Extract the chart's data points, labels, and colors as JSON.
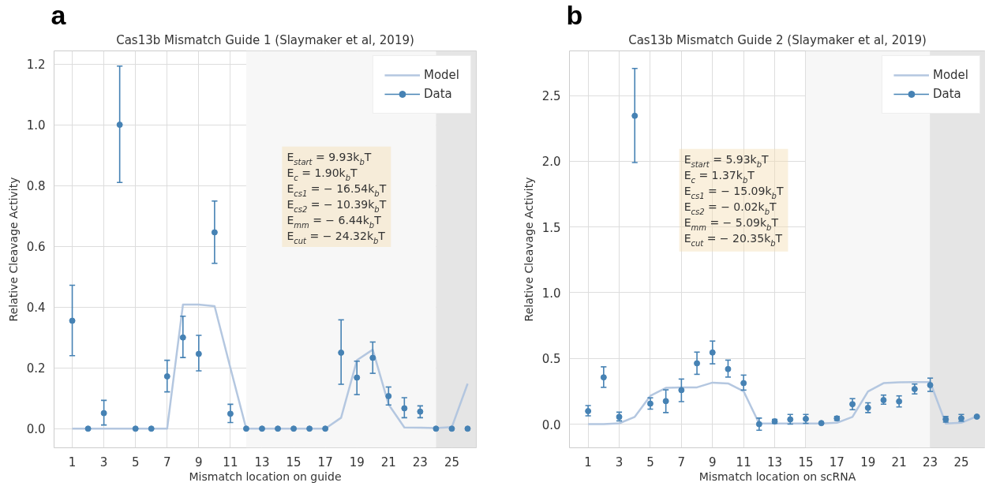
{
  "chart_data": [
    {
      "type": "line",
      "title": "Cas13b Mismatch Guide 1 (Slaymaker et al, 2019)",
      "xlabel": "Mismatch location on guide",
      "ylabel": "Relative Cleavage Activity",
      "annotations": [
        "a",
        "E$_{start}$ = 9.93k$_{b}$T",
        "E$_{c}$ = 1.90k$_{b}$T",
        "E$_{cs1}$ = − 16.54k$_{b}$T",
        "E$_{cs2}$ = − 10.39k$_{b}$T",
        "E$_{mm}$ = − 6.44k$_{b}$T",
        "E$_{cut}$ = − 24.32k$_{b}$T"
      ],
      "x": [
        1,
        2,
        3,
        4,
        5,
        6,
        7,
        8,
        9,
        10,
        11,
        12,
        13,
        14,
        15,
        16,
        17,
        18,
        19,
        20,
        21,
        22,
        23,
        24,
        25,
        26
      ],
      "series": [
        {
          "name": "Model",
          "color": "#b0c4de",
          "values": [
            0,
            0,
            0,
            0,
            0,
            0,
            0,
            0.408,
            0.408,
            0.403,
            0.2,
            0,
            0,
            0,
            0,
            0,
            0,
            0.036,
            0.225,
            0.26,
            0.08,
            0.004,
            0.003,
            0.002,
            0.005,
            0.148
          ]
        },
        {
          "name": "Data",
          "type": "scatter",
          "marker": "circle",
          "color": "#4682b4",
          "values": [
            0.355,
            0,
            0.051,
            1.0,
            0,
            0,
            0.172,
            0.3,
            0.246,
            0.646,
            0.049,
            0,
            0,
            0,
            0,
            0,
            0,
            0.25,
            0.168,
            0.233,
            0.107,
            0.067,
            0.056,
            0,
            0,
            0
          ],
          "errors": [
            [
              0.24,
              0.472
            ],
            null,
            [
              0.012,
              0.093
            ],
            [
              0.81,
              1.193
            ],
            null,
            null,
            [
              0.121,
              0.225
            ],
            [
              0.234,
              0.37
            ],
            [
              0.19,
              0.307
            ],
            [
              0.544,
              0.749
            ],
            [
              0.02,
              0.08
            ],
            null,
            null,
            null,
            null,
            null,
            null,
            [
              0.146,
              0.358
            ],
            [
              0.112,
              0.222
            ],
            [
              0.182,
              0.285
            ],
            [
              0.078,
              0.137
            ],
            [
              0.036,
              0.102
            ],
            [
              0.036,
              0.075
            ],
            null,
            null,
            null
          ]
        }
      ],
      "bands": [
        {
          "axis": "x",
          "from": 12,
          "to": 24,
          "color": "#f7f7f7"
        },
        {
          "axis": "x",
          "from": 24,
          "to": 26.55,
          "color": "#e5e5e5"
        }
      ],
      "xlim": [
        -0.15,
        26.55
      ],
      "xticks": [
        1,
        3,
        5,
        7,
        9,
        11,
        13,
        15,
        17,
        19,
        21,
        23,
        25
      ],
      "ylim": [
        -0.063,
        1.243
      ],
      "yticks": [
        {
          "value": 0,
          "label": "0.0"
        },
        0.2,
        0.4,
        0.6,
        0.8,
        {
          "value": 1,
          "label": "1.0"
        },
        1.2
      ],
      "grid": true,
      "legend": "top right"
    },
    {
      "type": "line",
      "title": "Cas13b Mismatch Guide 2 (Slaymaker et al, 2019)",
      "xlabel": "Mismatch location on scRNA",
      "ylabel": "Relative Cleavage Activity",
      "annotations": [
        "b",
        "E$_{start}$ = 5.93k$_{b}$T",
        "E$_{c}$ = 1.37k$_{b}$T",
        "E$_{cs1}$ = − 15.09k$_{b}$T",
        "E$_{cs2}$ = − 0.02k$_{b}$T",
        "E$_{mm}$ = − 5.09k$_{b}$T",
        "E$_{cut}$ = − 20.35k$_{b}$T"
      ],
      "x": [
        1,
        2,
        3,
        4,
        5,
        6,
        7,
        8,
        9,
        10,
        11,
        12,
        13,
        14,
        15,
        16,
        17,
        18,
        19,
        20,
        21,
        22,
        23,
        24,
        25,
        26
      ],
      "series": [
        {
          "name": "Model",
          "color": "#b0c4de",
          "values": [
            0,
            0,
            0.006,
            0.055,
            0.215,
            0.276,
            0.28,
            0.28,
            0.316,
            0.31,
            0.25,
            0.005,
            0.005,
            0.005,
            0.005,
            0.005,
            0.01,
            0.055,
            0.248,
            0.312,
            0.318,
            0.32,
            0.32,
            0.005,
            0.01,
            0.06
          ]
        },
        {
          "name": "Data",
          "type": "scatter",
          "marker": "circle",
          "color": "#4682b4",
          "values": [
            0.099,
            0.356,
            0.055,
            2.346,
            0.156,
            0.175,
            0.259,
            0.463,
            0.545,
            0.419,
            0.312,
            0.0,
            0.021,
            0.036,
            0.04,
            0.008,
            0.044,
            0.152,
            0.124,
            0.183,
            0.173,
            0.267,
            0.297,
            0.036,
            0.044,
            0.057
          ],
          "errors": [
            [
              0.063,
              0.141
            ],
            [
              0.28,
              0.436
            ],
            [
              0.025,
              0.091
            ],
            [
              1.99,
              2.706
            ],
            [
              0.114,
              0.2
            ],
            [
              0.088,
              0.261
            ],
            [
              0.171,
              0.343
            ],
            [
              0.379,
              0.548
            ],
            [
              0.459,
              0.632
            ],
            [
              0.358,
              0.487
            ],
            [
              0.259,
              0.373
            ],
            [
              -0.046,
              0.046
            ],
            [
              0.006,
              0.036
            ],
            [
              0.0,
              0.074
            ],
            [
              0.006,
              0.074
            ],
            null,
            [
              0.029,
              0.059
            ],
            [
              0.11,
              0.194
            ],
            [
              0.088,
              0.162
            ],
            [
              0.152,
              0.221
            ],
            [
              0.131,
              0.215
            ],
            [
              0.23,
              0.305
            ],
            [
              0.249,
              0.35
            ],
            [
              0.015,
              0.059
            ],
            [
              0.021,
              0.074
            ],
            [
              0.05,
              0.062
            ]
          ]
        }
      ],
      "bands": [
        {
          "axis": "x",
          "from": 15,
          "to": 23,
          "color": "#f7f7f7"
        },
        {
          "axis": "x",
          "from": 23,
          "to": 26.55,
          "color": "#e5e5e5"
        }
      ],
      "xlim": [
        -0.2,
        26.55
      ],
      "xticks": [
        1,
        3,
        5,
        7,
        9,
        11,
        13,
        15,
        17,
        19,
        21,
        23,
        25
      ],
      "ylim": [
        -0.18,
        2.84
      ],
      "yticks": [
        {
          "value": 0,
          "label": "0.0"
        },
        0.5,
        {
          "value": 1,
          "label": "1.0"
        },
        1.5,
        {
          "value": 2,
          "label": "2.0"
        },
        2.5
      ],
      "grid": true,
      "legend": "top right"
    }
  ]
}
